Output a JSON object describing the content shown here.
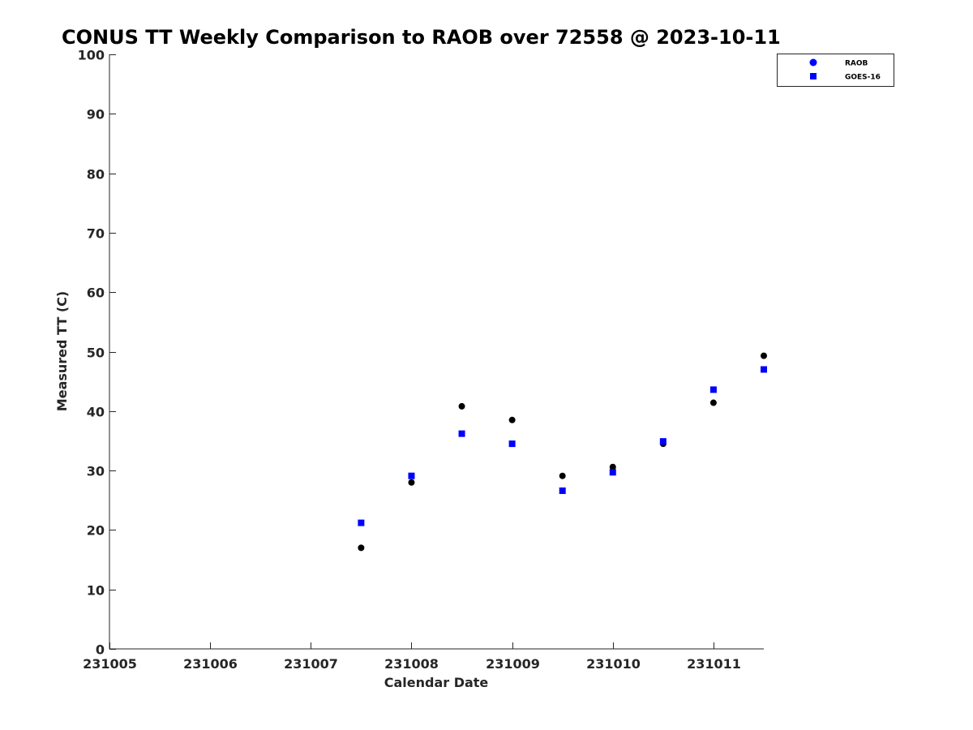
{
  "chart_data": {
    "type": "scatter",
    "title": "CONUS TT Weekly Comparison to RAOB over 72558 @ 2023-10-11",
    "xlabel": "Calendar Date",
    "ylabel": "Measured TT (C)",
    "xlim": [
      231005,
      231011.5
    ],
    "ylim": [
      0,
      100
    ],
    "xticks": [
      231005,
      231006,
      231007,
      231008,
      231009,
      231010,
      231011
    ],
    "xtick_labels": [
      "231005",
      "231006",
      "231007",
      "231008",
      "231009",
      "231010",
      "231011"
    ],
    "yticks": [
      0,
      10,
      20,
      30,
      40,
      50,
      60,
      70,
      80,
      90,
      100
    ],
    "ytick_labels": [
      "0",
      "10",
      "20",
      "30",
      "40",
      "50",
      "60",
      "70",
      "80",
      "90",
      "100"
    ],
    "grid": false,
    "legend_position": "top-right",
    "series": [
      {
        "name": "RAOB",
        "marker": "circle",
        "color": "#000000",
        "legend_color": "#0000ff",
        "x": [
          231007.5,
          231008,
          231008.5,
          231009,
          231009.5,
          231010,
          231010.5,
          231011,
          231011.5
        ],
        "y": [
          17.0,
          28.0,
          40.8,
          38.5,
          29.1,
          30.6,
          34.5,
          41.4,
          49.3
        ]
      },
      {
        "name": "GOES-16",
        "marker": "square",
        "color": "#0000ff",
        "legend_color": "#0000ff",
        "x": [
          231007.5,
          231008,
          231008.5,
          231009,
          231009.5,
          231010,
          231010.5,
          231011,
          231011.5
        ],
        "y": [
          21.2,
          29.1,
          36.2,
          34.5,
          26.6,
          29.7,
          34.9,
          43.6,
          47.0
        ]
      }
    ]
  }
}
